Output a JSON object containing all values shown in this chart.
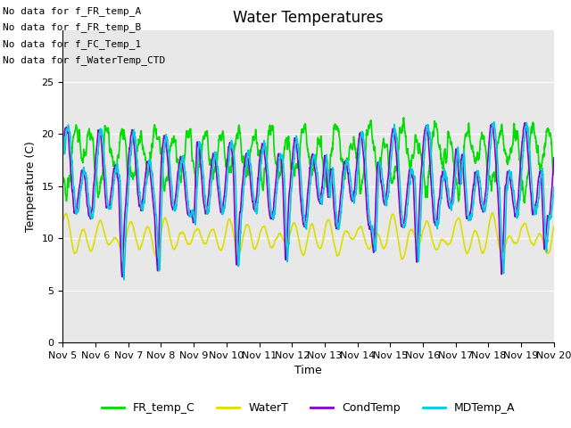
{
  "title": "Water Temperatures",
  "xlabel": "Time",
  "ylabel": "Temperature (C)",
  "ylim": [
    0,
    30
  ],
  "xlim": [
    5,
    20
  ],
  "xticks": [
    5,
    6,
    7,
    8,
    9,
    10,
    11,
    12,
    13,
    14,
    15,
    16,
    17,
    18,
    19,
    20
  ],
  "xtick_labels": [
    "Nov 5",
    "Nov 6",
    "Nov 7",
    "Nov 8",
    "Nov 9",
    "Nov 10",
    "Nov 11",
    "Nov 12",
    "Nov 13",
    "Nov 14",
    "Nov 15",
    "Nov 16",
    "Nov 17",
    "Nov 18",
    "Nov 19",
    "Nov 20"
  ],
  "yticks": [
    0,
    5,
    10,
    15,
    20,
    25
  ],
  "series": [
    {
      "name": "FR_temp_C",
      "color": "#00dd00",
      "lw": 1.2
    },
    {
      "name": "WaterT",
      "color": "#dddd00",
      "lw": 1.2
    },
    {
      "name": "CondTemp",
      "color": "#8800cc",
      "lw": 1.2
    },
    {
      "name": "MDTemp_A",
      "color": "#00ccdd",
      "lw": 1.2
    }
  ],
  "legend_colors": [
    "#00dd00",
    "#dddd00",
    "#8800cc",
    "#00ccdd"
  ],
  "no_data_texts": [
    "No data for f_FR_temp_A",
    "No data for f_FR_temp_B",
    "No data for f_FC_Temp_1",
    "No data for f_WaterTemp_CTD"
  ],
  "background_color": "#e8e8e8",
  "title_fontsize": 12,
  "axis_fontsize": 9,
  "tick_fontsize": 8,
  "legend_fontsize": 9,
  "no_data_fontsize": 8
}
